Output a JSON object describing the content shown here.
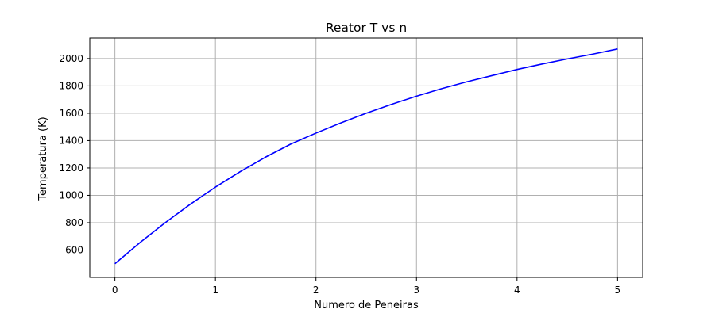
{
  "chart_data": {
    "type": "line",
    "title": "Reator T vs n",
    "xlabel": "Numero de Peneiras",
    "ylabel": "Temperatura (K)",
    "xlim": [
      -0.25,
      5.25
    ],
    "ylim": [
      400,
      2150
    ],
    "xticks": [
      0,
      1,
      2,
      3,
      4,
      5
    ],
    "yticks": [
      600,
      800,
      1000,
      1200,
      1400,
      1600,
      1800,
      2000
    ],
    "grid": true,
    "series": [
      {
        "color": "#0000ff",
        "x": [
          0,
          0.25,
          0.5,
          0.75,
          1,
          1.25,
          1.5,
          1.75,
          2,
          2.25,
          2.5,
          2.75,
          3,
          3.25,
          3.5,
          3.75,
          4,
          4.25,
          4.5,
          4.75,
          5
        ],
        "y": [
          500,
          655,
          800,
          935,
          1060,
          1175,
          1280,
          1375,
          1455,
          1530,
          1600,
          1665,
          1725,
          1780,
          1830,
          1875,
          1920,
          1960,
          1997,
          2032,
          2070
        ]
      }
    ]
  }
}
